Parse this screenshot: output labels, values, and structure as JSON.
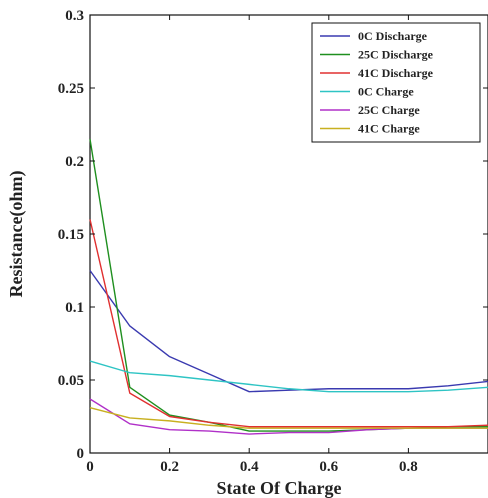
{
  "chart_data": {
    "type": "line",
    "title": "",
    "xlabel": "State Of Charge",
    "ylabel": "Resistance(ohm)",
    "xlim": [
      0,
      1
    ],
    "ylim": [
      0,
      0.3
    ],
    "x_ticks": [
      0,
      0.2,
      0.4,
      0.6,
      0.8
    ],
    "x_tick_labels": [
      "0",
      "0.2",
      "0.4",
      "0.6",
      "0.8"
    ],
    "y_ticks": [
      0,
      0.05,
      0.1,
      0.15,
      0.2,
      0.25,
      0.3
    ],
    "y_tick_labels": [
      "0",
      "0.05",
      "0.1",
      "0.15",
      "0.2",
      "0.25",
      "0.3"
    ],
    "grid": false,
    "legend_position": "top-right",
    "series": [
      {
        "name": "0C Discharge",
        "color": "#3a3ab0",
        "x": [
          0,
          0.1,
          0.2,
          0.3,
          0.4,
          0.5,
          0.6,
          0.7,
          0.8,
          0.9,
          1.0
        ],
        "y": [
          0.125,
          0.087,
          0.066,
          0.054,
          0.042,
          0.043,
          0.044,
          0.044,
          0.044,
          0.046,
          0.049
        ]
      },
      {
        "name": "25C Discharge",
        "color": "#1f8f1f",
        "x": [
          0,
          0.1,
          0.2,
          0.3,
          0.4,
          0.5,
          0.6,
          0.7,
          0.8,
          0.9,
          1.0
        ],
        "y": [
          0.215,
          0.045,
          0.026,
          0.021,
          0.015,
          0.015,
          0.015,
          0.016,
          0.017,
          0.018,
          0.018
        ]
      },
      {
        "name": "41C Discharge",
        "color": "#e03030",
        "x": [
          0,
          0.1,
          0.2,
          0.3,
          0.4,
          0.5,
          0.6,
          0.7,
          0.8,
          0.9,
          1.0
        ],
        "y": [
          0.16,
          0.041,
          0.025,
          0.021,
          0.018,
          0.018,
          0.018,
          0.018,
          0.018,
          0.018,
          0.019
        ]
      },
      {
        "name": "0C Charge",
        "color": "#2ec4c4",
        "x": [
          0,
          0.1,
          0.2,
          0.3,
          0.4,
          0.5,
          0.6,
          0.7,
          0.8,
          0.9,
          1.0
        ],
        "y": [
          0.063,
          0.055,
          0.053,
          0.05,
          0.047,
          0.044,
          0.042,
          0.042,
          0.042,
          0.043,
          0.045
        ]
      },
      {
        "name": "25C Charge",
        "color": "#b030c8",
        "x": [
          0,
          0.1,
          0.2,
          0.3,
          0.4,
          0.5,
          0.6,
          0.7,
          0.8,
          0.9,
          1.0
        ],
        "y": [
          0.037,
          0.02,
          0.016,
          0.015,
          0.013,
          0.014,
          0.014,
          0.016,
          0.017,
          0.017,
          0.017
        ]
      },
      {
        "name": "41C Charge",
        "color": "#c8b020",
        "x": [
          0,
          0.1,
          0.2,
          0.3,
          0.4,
          0.5,
          0.6,
          0.7,
          0.8,
          0.9,
          1.0
        ],
        "y": [
          0.031,
          0.024,
          0.022,
          0.019,
          0.017,
          0.017,
          0.017,
          0.017,
          0.017,
          0.017,
          0.017
        ]
      }
    ]
  }
}
